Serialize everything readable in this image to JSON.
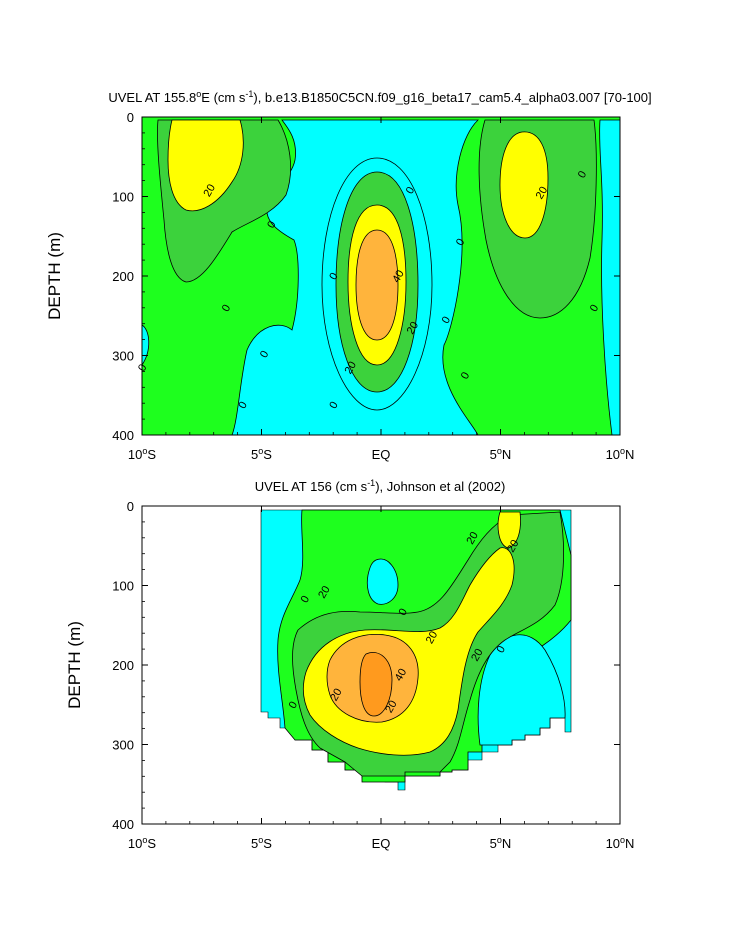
{
  "colors": {
    "c_neg": "#00ffff",
    "c_0_20": "#1eff1e",
    "c_20_30": "#3cd23c",
    "c_30_40": "#ffff00",
    "c_40_50": "#ffb43c",
    "c_50": "#ff9a1e",
    "line": "#000000",
    "background": "#ffffff"
  },
  "chart_data": [
    {
      "type": "heatmap",
      "title_main": "UVEL AT 155.8",
      "title_deg": "o",
      "title_mid": "E (cm s",
      "title_sup": "-1",
      "title_tail": "), b.e13.B1850C5CN.f09_g16_beta17_cam5.4_alpha03.007 [70-100]",
      "ylabel": "DEPTH (m)",
      "xlim": [
        -10,
        10
      ],
      "ylim": [
        400,
        0
      ],
      "x_ticks": [
        {
          "value": -10,
          "num": "10",
          "deg": "o",
          "hemi": "S"
        },
        {
          "value": -5,
          "num": "5",
          "deg": "o",
          "hemi": "S"
        },
        {
          "value": 0,
          "num": "EQ",
          "deg": "",
          "hemi": ""
        },
        {
          "value": 5,
          "num": "5",
          "deg": "o",
          "hemi": "N"
        },
        {
          "value": 10,
          "num": "10",
          "deg": "o",
          "hemi": "N"
        }
      ],
      "y_ticks": [
        0,
        100,
        200,
        300,
        400
      ],
      "contour_labels": [
        {
          "text": "20",
          "x": -7.2,
          "y": 92
        },
        {
          "text": "0",
          "x": -4.6,
          "y": 135
        },
        {
          "text": "0",
          "x": -6.5,
          "y": 240
        },
        {
          "text": "0",
          "x": -4.9,
          "y": 298
        },
        {
          "text": "0",
          "x": -5.8,
          "y": 362
        },
        {
          "text": "0",
          "x": -10,
          "y": 315
        },
        {
          "text": "0",
          "x": -2.0,
          "y": 200
        },
        {
          "text": "0",
          "x": -2.0,
          "y": 362
        },
        {
          "text": "0",
          "x": 1.2,
          "y": 92
        },
        {
          "text": "40",
          "x": 0.7,
          "y": 200
        },
        {
          "text": "20",
          "x": 1.3,
          "y": 265
        },
        {
          "text": "20",
          "x": -1.3,
          "y": 315
        },
        {
          "text": "0",
          "x": 2.7,
          "y": 255
        },
        {
          "text": "0",
          "x": 3.3,
          "y": 157
        },
        {
          "text": "0",
          "x": 3.5,
          "y": 325
        },
        {
          "text": "20",
          "x": 6.7,
          "y": 95
        },
        {
          "text": "0",
          "x": 8.4,
          "y": 72
        },
        {
          "text": "0",
          "x": 8.9,
          "y": 240
        }
      ]
    },
    {
      "type": "heatmap",
      "title_main": "UVEL AT 156 (cm s",
      "title_sup": "-1",
      "title_tail": "), Johnson et al (2002)",
      "ylabel": "DEPTH (m)",
      "xlim": [
        -10,
        10
      ],
      "ylim": [
        400,
        0
      ],
      "x_ticks": [
        {
          "value": -10,
          "num": "10",
          "deg": "o",
          "hemi": "S"
        },
        {
          "value": -5,
          "num": "5",
          "deg": "o",
          "hemi": "S"
        },
        {
          "value": 0,
          "num": "EQ",
          "deg": "",
          "hemi": ""
        },
        {
          "value": 5,
          "num": "5",
          "deg": "o",
          "hemi": "N"
        },
        {
          "value": 10,
          "num": "10",
          "deg": "o",
          "hemi": "N"
        }
      ],
      "y_ticks": [
        0,
        100,
        200,
        300,
        400
      ],
      "contour_labels": [
        {
          "text": "20",
          "x": -2.4,
          "y": 108
        },
        {
          "text": "0",
          "x": 0.9,
          "y": 133
        },
        {
          "text": "0",
          "x": -3.2,
          "y": 117
        },
        {
          "text": "20",
          "x": -1.9,
          "y": 237
        },
        {
          "text": "40",
          "x": 0.8,
          "y": 212
        },
        {
          "text": "20",
          "x": 2.1,
          "y": 165
        },
        {
          "text": "20",
          "x": 0.4,
          "y": 252
        },
        {
          "text": "20",
          "x": 4.0,
          "y": 187
        },
        {
          "text": "0",
          "x": 5.0,
          "y": 180
        },
        {
          "text": "20",
          "x": 3.8,
          "y": 40
        },
        {
          "text": "20",
          "x": 5.5,
          "y": 50
        },
        {
          "text": "0",
          "x": -3.7,
          "y": 250
        }
      ]
    }
  ]
}
